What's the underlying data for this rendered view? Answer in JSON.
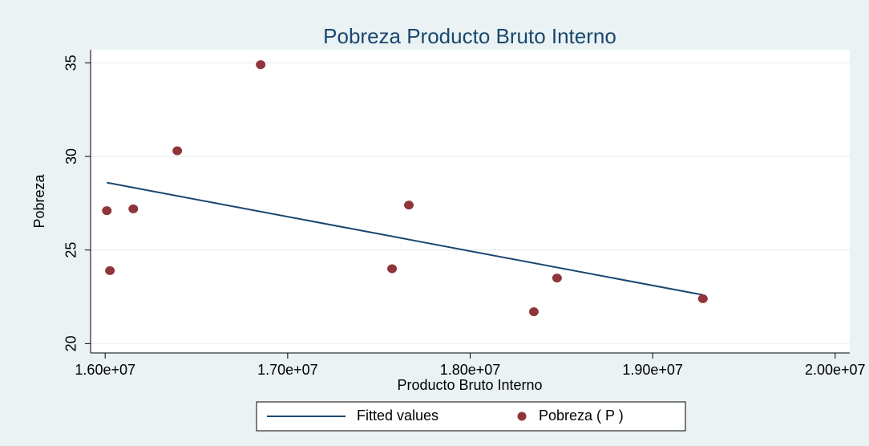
{
  "chart_data": {
    "type": "scatter",
    "title": "Pobreza Producto Bruto Interno",
    "x_label": "Producto Bruto Interno",
    "y_label": "Pobreza",
    "xlim": [
      15920000,
      20080000
    ],
    "ylim": [
      19.5,
      35.7
    ],
    "xticks": [
      {
        "value": 16000000,
        "label": "1.60e+07"
      },
      {
        "value": 17000000,
        "label": "1.70e+07"
      },
      {
        "value": 18000000,
        "label": "1.80e+07"
      },
      {
        "value": 19000000,
        "label": "1.90e+07"
      },
      {
        "value": 20000000,
        "label": "2.00e+07"
      }
    ],
    "yticks": [
      20,
      25,
      30,
      35
    ],
    "grid": true,
    "legend": "bottom",
    "series": [
      {
        "name": "Fitted values",
        "type": "line",
        "color": "#1a476f",
        "x": [
          16009000,
          19275000
        ],
        "values": [
          28.6,
          22.6
        ]
      },
      {
        "name": "Pobreza ( P )",
        "type": "scatter",
        "color": "#90353b",
        "x": [
          16009000,
          16026000,
          16154000,
          16395000,
          16852000,
          17572000,
          17664000,
          18349000,
          18476000,
          19275000
        ],
        "values": [
          27.1,
          23.9,
          27.2,
          30.3,
          34.9,
          24.0,
          27.4,
          21.7,
          23.5,
          22.4
        ]
      }
    ]
  }
}
